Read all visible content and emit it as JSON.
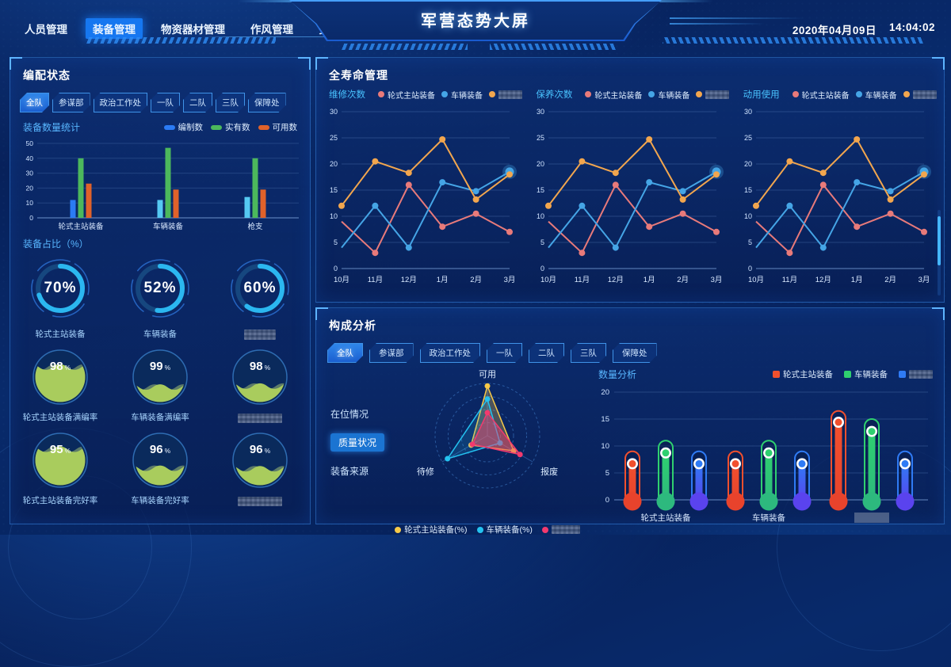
{
  "colors": {
    "accent": "#1677f0",
    "panel_border": "#3482dc",
    "cyan_label": "#49c3ff",
    "donut_arc": "#2bb7f0",
    "liquid_fill": "#a9cc5d"
  },
  "header": {
    "nav": [
      {
        "label": "人员管理",
        "active": false
      },
      {
        "label": "装备管理",
        "active": true
      },
      {
        "label": "物资器材管理",
        "active": false
      },
      {
        "label": "作风管理",
        "active": false
      },
      {
        "label": "安防管理",
        "active": false
      }
    ],
    "title": "军营态势大屏",
    "date": "2020年04月09日",
    "time": "14:04:02"
  },
  "filters": [
    "全队",
    "参谋部",
    "政治工作处",
    "一队",
    "二队",
    "三队",
    "保障处"
  ],
  "panels": {
    "allocation": {
      "title": "编配状态",
      "bar_label": "装备数量统计",
      "ratio_label": "装备占比（%）",
      "donuts": [
        {
          "pct": 70,
          "value": "70%",
          "label": "轮式主站装备"
        },
        {
          "pct": 52,
          "value": "52%",
          "label": "车辆装备"
        },
        {
          "pct": 60,
          "value": "60%",
          "label": "",
          "redacted": true
        }
      ],
      "gauges_row1": [
        {
          "value": "98",
          "unit": "%",
          "fill": 0.7,
          "label": "轮式主站装备满编率"
        },
        {
          "value": "99",
          "unit": "%",
          "fill": 0.3,
          "label": "车辆装备满编率"
        },
        {
          "value": "98",
          "unit": "%",
          "fill": 0.32,
          "label": "",
          "redacted": true
        }
      ],
      "gauges_row2": [
        {
          "value": "95",
          "unit": "%",
          "fill": 0.72,
          "label": "轮式主站装备完好率"
        },
        {
          "value": "96",
          "unit": "%",
          "fill": 0.34,
          "label": "车辆装备完好率"
        },
        {
          "value": "96",
          "unit": "%",
          "fill": 0.33,
          "label": "",
          "redacted": true
        }
      ]
    },
    "lifecycle": {
      "title": "全寿命管理",
      "chart_labels": [
        "维修次数",
        "保养次数",
        "动用使用"
      ],
      "legend": [
        {
          "label": "轮式主站装备",
          "color": "#e87a7a"
        },
        {
          "label": "车辆装备",
          "color": "#45a5e6"
        },
        {
          "label": "",
          "redacted": true,
          "color": "#f2a64e"
        }
      ]
    },
    "composition": {
      "title": "构成分析",
      "menu": [
        {
          "label": "在位情况",
          "active": false
        },
        {
          "label": "质量状况",
          "active": true
        },
        {
          "label": "装备来源",
          "active": false
        }
      ],
      "radar_legend": [
        {
          "label": "轮式主站装备(%)",
          "color": "#f7c948"
        },
        {
          "label": "车辆装备(%)",
          "color": "#24c2f0"
        },
        {
          "label": "",
          "redacted": true,
          "color": "#f23a6e"
        }
      ],
      "quantity_label": "数量分析",
      "quantity_legend": [
        {
          "label": "轮式主站装备",
          "color": "#f1502e"
        },
        {
          "label": "车辆装备",
          "color": "#2fd06f"
        },
        {
          "label": "",
          "redacted": true,
          "color": "#2f7bf5"
        }
      ]
    }
  },
  "chart_data": [
    {
      "id": "equip-bar",
      "type": "bar",
      "title": "装备数量统计",
      "categories": [
        "轮式主站装备",
        "车辆装备",
        "枪支"
      ],
      "ylim": [
        0,
        50
      ],
      "yticks": [
        0,
        10,
        20,
        30,
        40,
        50
      ],
      "series": [
        {
          "name": "编制数",
          "color": "#2b7bf4",
          "bar_colors": [
            "#2b7bf4",
            "#55c9f2",
            "#55c9f2"
          ],
          "values": [
            12,
            12,
            14
          ]
        },
        {
          "name": "实有数",
          "color": "#4cb85c",
          "values": [
            40,
            47,
            40
          ]
        },
        {
          "name": "可用数",
          "color": "#e0622a",
          "values": [
            23,
            19,
            19
          ]
        }
      ]
    },
    {
      "id": "repair-line",
      "type": "line",
      "title": "维修次数",
      "x": [
        "10月",
        "11月",
        "12月",
        "1月",
        "2月",
        "3月"
      ],
      "ylim": [
        0,
        30
      ],
      "yticks": [
        0,
        5,
        10,
        15,
        20,
        25,
        30
      ],
      "series": [
        {
          "name": "轮式主站装备",
          "color": "#e87a7a",
          "values": [
            9,
            3,
            16,
            8,
            10.5,
            7
          ],
          "marker_start": 1
        },
        {
          "name": "车辆装备",
          "color": "#45a5e6",
          "values": [
            4,
            12,
            4,
            16.5,
            14.8,
            18.5
          ],
          "marker_start": 1,
          "emphasis_last": true
        },
        {
          "name": "",
          "redacted": true,
          "color": "#f2a64e",
          "values": [
            12,
            20.5,
            18.3,
            24.7,
            13.2,
            18
          ]
        }
      ]
    },
    {
      "id": "maintain-line",
      "type": "line",
      "title": "保养次数",
      "x": [
        "10月",
        "11月",
        "12月",
        "1月",
        "2月",
        "3月"
      ],
      "ylim": [
        0,
        30
      ],
      "yticks": [
        0,
        5,
        10,
        15,
        20,
        25,
        30
      ],
      "series": [
        {
          "name": "轮式主站装备",
          "color": "#e87a7a",
          "values": [
            9,
            3,
            16,
            8,
            10.5,
            7
          ],
          "marker_start": 1
        },
        {
          "name": "车辆装备",
          "color": "#45a5e6",
          "values": [
            4,
            12,
            4,
            16.5,
            14.8,
            18.5
          ],
          "marker_start": 1,
          "emphasis_last": true
        },
        {
          "name": "",
          "redacted": true,
          "color": "#f2a64e",
          "values": [
            12,
            20.5,
            18.3,
            24.7,
            13.2,
            18
          ]
        }
      ]
    },
    {
      "id": "usage-line",
      "type": "line",
      "title": "动用使用",
      "x": [
        "10月",
        "11月",
        "12月",
        "1月",
        "2月",
        "3月"
      ],
      "ylim": [
        0,
        30
      ],
      "yticks": [
        0,
        5,
        10,
        15,
        20,
        25,
        30
      ],
      "series": [
        {
          "name": "轮式主站装备",
          "color": "#e87a7a",
          "values": [
            9,
            3,
            16,
            8,
            10.5,
            7
          ],
          "marker_start": 1
        },
        {
          "name": "车辆装备",
          "color": "#45a5e6",
          "values": [
            4,
            12,
            4,
            16.5,
            14.8,
            18.5
          ],
          "marker_start": 1,
          "emphasis_last": true
        },
        {
          "name": "",
          "redacted": true,
          "color": "#f2a64e",
          "values": [
            12,
            20.5,
            18.3,
            24.7,
            13.2,
            18
          ]
        }
      ]
    },
    {
      "id": "quality-radar",
      "type": "radar",
      "max": 100,
      "axes": [
        "可用",
        "报废",
        "待修"
      ],
      "series": [
        {
          "name": "轮式主站装备(%)",
          "color": "#f7c948",
          "fill_opacity": 0.28,
          "values": [
            95,
            58,
            36
          ]
        },
        {
          "name": "车辆装备(%)",
          "color": "#24c2f0",
          "fill_opacity": 0.16,
          "values": [
            70,
            28,
            88
          ]
        },
        {
          "name": "",
          "redacted": true,
          "color": "#f23a6e",
          "fill_opacity": 0.45,
          "values": [
            44,
            72,
            33
          ]
        }
      ]
    },
    {
      "id": "quantity-thermo",
      "type": "thermometer",
      "title": "数量分析",
      "ylim": [
        0,
        20
      ],
      "yticks": [
        0,
        5,
        10,
        15,
        20
      ],
      "categories": [
        {
          "label": "轮式主站装备"
        },
        {
          "label": "车辆装备"
        },
        {
          "label": "",
          "redacted": true
        }
      ],
      "series": [
        {
          "name": "轮式主站装备",
          "color": "#f1502e",
          "bulb": "#e8432c"
        },
        {
          "name": "车辆装备",
          "color": "#2fd06f",
          "bulb": "#2db97e"
        },
        {
          "name": "",
          "redacted": true,
          "color": "#2f7bf5",
          "bulb": "#5a43ee"
        }
      ],
      "outline": [
        [
          9,
          11,
          9
        ],
        [
          9,
          11,
          9
        ],
        [
          16.5,
          15,
          9
        ]
      ],
      "dots": [
        [
          7,
          9,
          7
        ],
        [
          7,
          9,
          7
        ],
        [
          14.7,
          13,
          7
        ]
      ]
    }
  ]
}
